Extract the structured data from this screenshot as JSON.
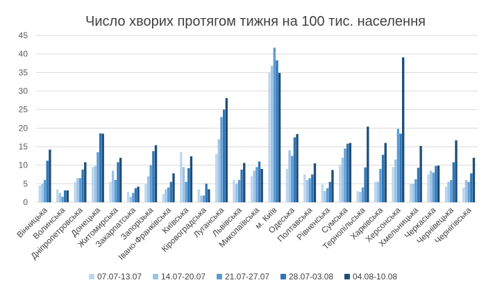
{
  "chart_data": {
    "type": "bar",
    "title": "Число хворих протягом тижня на 100 тис. населення",
    "xlabel": "",
    "ylabel": "",
    "ylim": [
      0,
      45
    ],
    "yticks": [
      0,
      5,
      10,
      15,
      20,
      25,
      30,
      35,
      40,
      45
    ],
    "grid": true,
    "legend_position": "bottom",
    "categories": [
      "Вінницька",
      "Волинська",
      "Дніпропетровська",
      "Донецька",
      "Житомирська",
      "Закарпатська",
      "Запорізька",
      "Івано-Франківська",
      "Київська",
      "Кіровоградська",
      "Луганська",
      "Львівська",
      "Миколаївська",
      "м. Київ",
      "Одеська",
      "Полтавська",
      "Рівненська",
      "Сумська",
      "Тернопільська",
      "Харківська",
      "Херсонська",
      "Хмельницька",
      "Черкаська",
      "Чернівецька",
      "Чернігівська"
    ],
    "series": [
      {
        "name": "07.07-13.07",
        "color": "#bdd7ee",
        "values": [
          4.5,
          3.5,
          5.5,
          9.5,
          5.5,
          2.8,
          5.0,
          2.2,
          13.5,
          3.5,
          13.0,
          6.0,
          7.0,
          35.0,
          9.0,
          7.5,
          4.8,
          10.0,
          3.0,
          5.5,
          9.5,
          5.0,
          7.5,
          4.2,
          4.0
        ]
      },
      {
        "name": "14.07-20.07",
        "color": "#9dc3e6",
        "values": [
          5.0,
          2.5,
          6.5,
          9.8,
          8.5,
          1.5,
          7.0,
          3.5,
          9.5,
          1.8,
          17.0,
          5.0,
          8.5,
          36.8,
          14.0,
          6.0,
          3.0,
          12.0,
          2.8,
          5.5,
          11.5,
          5.0,
          8.5,
          5.5,
          6.0
        ]
      },
      {
        "name": "21.07-27.07",
        "color": "#5b9bd5",
        "values": [
          6.0,
          1.5,
          6.5,
          13.5,
          6.0,
          2.5,
          10.0,
          4.0,
          5.5,
          1.8,
          23.0,
          6.0,
          9.5,
          41.7,
          12.5,
          6.5,
          3.8,
          14.5,
          4.0,
          9.0,
          19.8,
          6.2,
          8.0,
          6.0,
          5.5
        ]
      },
      {
        "name": "28.07-03.08",
        "color": "#2e75b6",
        "values": [
          11.2,
          3.2,
          8.8,
          18.6,
          10.8,
          3.8,
          13.8,
          5.5,
          9.2,
          5.0,
          25.0,
          8.8,
          11.0,
          38.3,
          17.5,
          7.5,
          5.5,
          15.8,
          9.4,
          12.8,
          18.5,
          9.3,
          9.8,
          10.8,
          7.8
        ]
      },
      {
        "name": "04.08-10.08",
        "color": "#1f4e79",
        "values": [
          14.2,
          3.2,
          10.8,
          18.5,
          12.0,
          4.2,
          15.4,
          7.8,
          12.4,
          3.5,
          28.1,
          10.6,
          9.0,
          34.9,
          18.4,
          10.5,
          8.7,
          16.0,
          20.4,
          16.0,
          39.1,
          15.2,
          9.9,
          16.7,
          12.0
        ]
      }
    ]
  }
}
